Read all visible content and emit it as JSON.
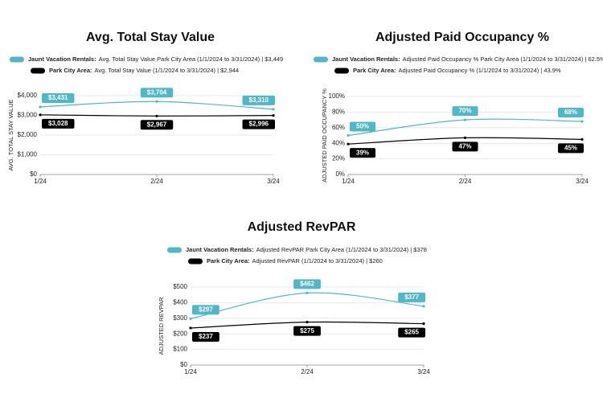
{
  "chart_data": [
    {
      "type": "line",
      "title": "Avg. Total Stay Value",
      "y_label": "AVG. TOTAL STAY VALUE",
      "categories": [
        "1/24",
        "2/24",
        "3/24"
      ],
      "series": [
        {
          "name": "Jaunt Vacation Rentals:",
          "legend_text": "Avg. Total Stay Value Park City Area (1/1/2024 to 3/31/2024) | $3,449",
          "color": "#4fb8c8",
          "values": [
            3431,
            3704,
            3310
          ],
          "value_labels": [
            "$3,431",
            "$3,704",
            "$3,310"
          ]
        },
        {
          "name": "Park City Area:",
          "legend_text": "Avg. Total Stay Value (1/1/2024 to 3/31/2024) | $2,944",
          "color": "#000000",
          "values": [
            3028,
            2967,
            2996
          ],
          "value_labels": [
            "$3,028",
            "$2,967",
            "$2,996"
          ]
        }
      ],
      "ylim": [
        0,
        4000
      ],
      "yticks": [
        {
          "value": 0,
          "label": "$0"
        },
        {
          "value": 1000,
          "label": "$1,000"
        },
        {
          "value": 2000,
          "label": "$2,000"
        },
        {
          "value": 3000,
          "label": "$3,000"
        },
        {
          "value": 4000,
          "label": "$4,000"
        }
      ],
      "grid": true
    },
    {
      "type": "line",
      "title": "Adjusted Paid Occupancy %",
      "y_label": "ADJUSTED PAID OCCUPANCY %",
      "categories": [
        "1/24",
        "2/24",
        "3/24"
      ],
      "series": [
        {
          "name": "Jaunt Vacation Rentals:",
          "legend_text": "Adjusted Paid Occupancy % Park City Area (1/1/2024 to 3/31/2024) | 62.5%",
          "color": "#4fb8c8",
          "values": [
            50,
            70,
            68
          ],
          "value_labels": [
            "50%",
            "70%",
            "68%"
          ]
        },
        {
          "name": "Park City Area:",
          "legend_text": "Adjusted Paid Occupancy % (1/1/2024 to 3/31/2024) | 43.9%",
          "color": "#000000",
          "values": [
            39,
            47,
            45
          ],
          "value_labels": [
            "39%",
            "47%",
            "45%"
          ]
        }
      ],
      "ylim": [
        0,
        100
      ],
      "yticks": [
        {
          "value": 0,
          "label": "0%"
        },
        {
          "value": 20,
          "label": "20%"
        },
        {
          "value": 40,
          "label": "40%"
        },
        {
          "value": 60,
          "label": "60%"
        },
        {
          "value": 80,
          "label": "80%"
        },
        {
          "value": 100,
          "label": "100%"
        }
      ],
      "grid": true
    },
    {
      "type": "line",
      "title": "Adjusted RevPAR",
      "y_label": "ADJUSTED REVPAR",
      "categories": [
        "1/24",
        "2/24",
        "3/24"
      ],
      "series": [
        {
          "name": "Jaunt Vacation Rentals:",
          "legend_text": "Adjusted RevPAR Park City Area (1/1/2024 to 3/31/2024) | $378",
          "color": "#4fb8c8",
          "values": [
            297,
            462,
            377
          ],
          "value_labels": [
            "$297",
            "$462",
            "$377"
          ]
        },
        {
          "name": "Park City Area:",
          "legend_text": "Adjusted RevPAR (1/1/2024 to 3/31/2024) | $260",
          "color": "#000000",
          "values": [
            237,
            275,
            265
          ],
          "value_labels": [
            "$237",
            "$275",
            "$265"
          ]
        }
      ],
      "ylim": [
        0,
        500
      ],
      "yticks": [
        {
          "value": 0,
          "label": "$0"
        },
        {
          "value": 100,
          "label": "$100"
        },
        {
          "value": 200,
          "label": "$200"
        },
        {
          "value": 300,
          "label": "$300"
        },
        {
          "value": 400,
          "label": "$400"
        },
        {
          "value": 500,
          "label": "$500"
        }
      ],
      "grid": true
    }
  ]
}
